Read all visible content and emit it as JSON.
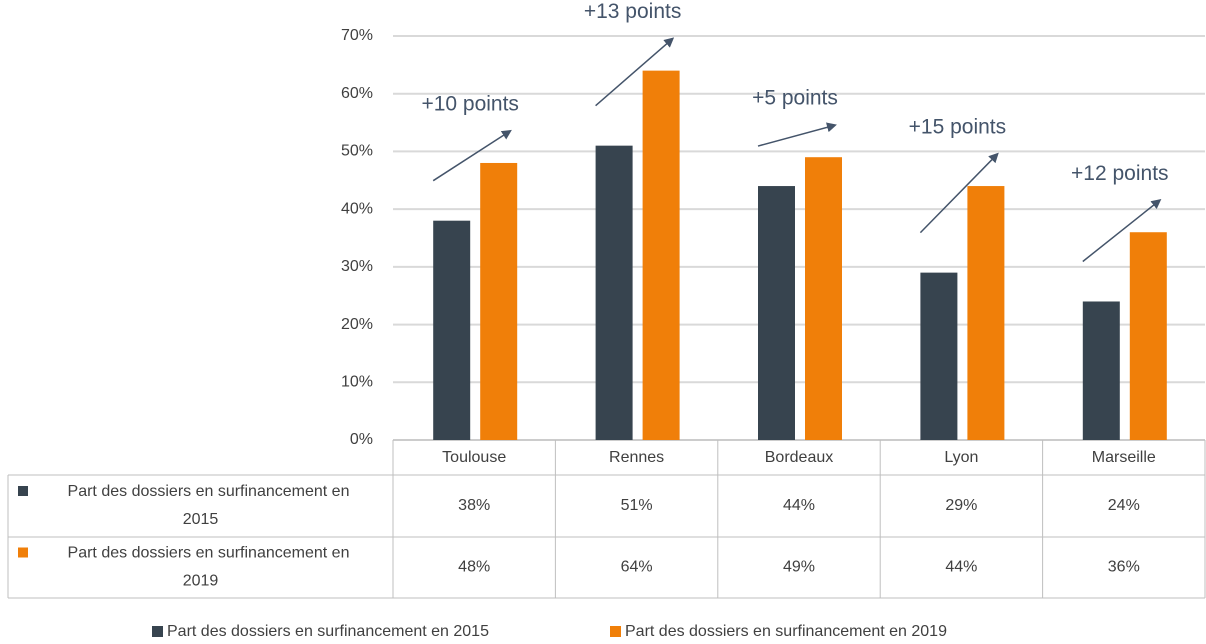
{
  "chart_data": {
    "type": "bar",
    "categories": [
      "Toulouse",
      "Rennes",
      "Bordeaux",
      "Lyon",
      "Marseille"
    ],
    "series": [
      {
        "name": "Part des dossiers en surfinancement en 2015",
        "color": "#37444f",
        "values": [
          38,
          51,
          44,
          29,
          24
        ],
        "value_labels": [
          "38%",
          "51%",
          "44%",
          "29%",
          "24%"
        ]
      },
      {
        "name": "Part des dossiers en surfinancement en 2019",
        "color": "#f07f09",
        "values": [
          48,
          64,
          49,
          44,
          36
        ],
        "value_labels": [
          "48%",
          "64%",
          "49%",
          "44%",
          "36%"
        ]
      }
    ],
    "ylim": [
      0,
      70
    ],
    "yticks": [
      {
        "value": 0,
        "label": "0%"
      },
      {
        "value": 10,
        "label": "10%"
      },
      {
        "value": 20,
        "label": "20%"
      },
      {
        "value": 30,
        "label": "30%"
      },
      {
        "value": 40,
        "label": "40%"
      },
      {
        "value": 50,
        "label": "50%"
      },
      {
        "value": 60,
        "label": "60%"
      },
      {
        "value": 70,
        "label": "70%"
      }
    ],
    "grid": true,
    "annotations": [
      "+10 points",
      "+13 points",
      "+5 points",
      "+15 points",
      "+12 points"
    ]
  }
}
